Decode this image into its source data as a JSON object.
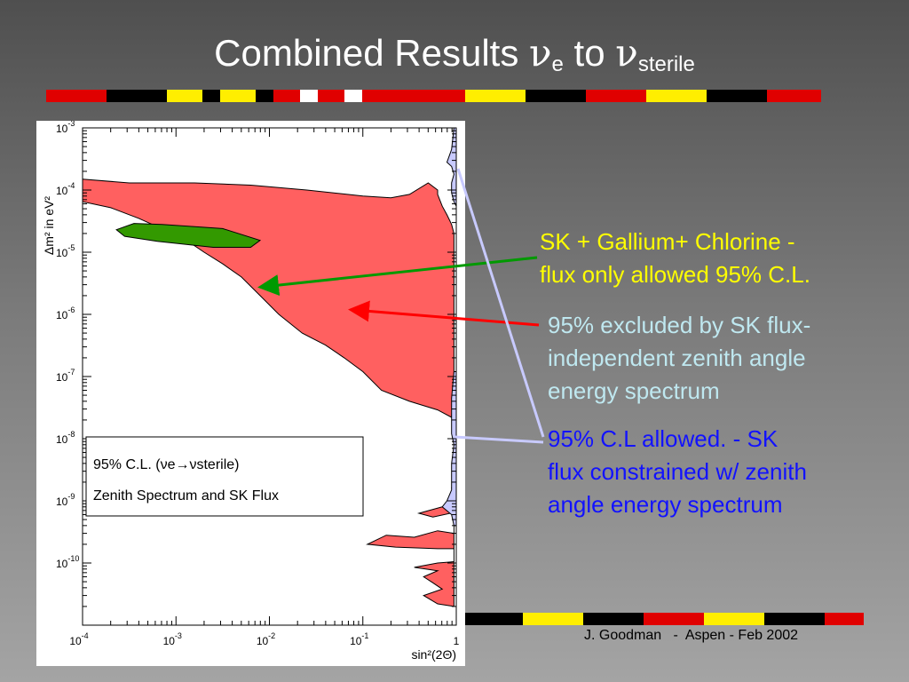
{
  "slide": {
    "title_main": "Combined Results ",
    "title_nu1": "ν",
    "title_sub1": "e",
    "title_mid": " to ",
    "title_nu2": "ν",
    "title_sub2": "sterile"
  },
  "annotations": {
    "green": {
      "lines": [
        "SK + Gallium+ Chlorine -",
        "flux only allowed 95% C.L."
      ],
      "color": "#ffff00"
    },
    "red": {
      "lines": [
        "95% excluded by SK flux-",
        "independent zenith angle",
        "energy spectrum"
      ],
      "color": "#bfe8f0"
    },
    "blue": {
      "lines": [
        "95% C.L allowed.  - SK",
        "flux constrained w/ zenith",
        "angle energy spectrum"
      ],
      "color": "#1212ff"
    }
  },
  "footer": "J. Goodman   -  Aspen - Feb 2002",
  "chart_data": {
    "type": "area",
    "xlabel": "sin²(2Θ)",
    "ylabel": "Δm² in eV²",
    "x_log": true,
    "y_log": true,
    "xlim": [
      0.0001,
      1
    ],
    "ylim": [
      1e-11,
      0.001
    ],
    "x_ticks": [
      {
        "base": "10",
        "exp": "-4"
      },
      {
        "base": "10",
        "exp": "-3"
      },
      {
        "base": "10",
        "exp": "-2"
      },
      {
        "base": "10",
        "exp": "-1"
      },
      {
        "base": "",
        "exp": "1"
      }
    ],
    "y_ticks": [
      {
        "base": "10",
        "exp": "-3"
      },
      {
        "base": "10",
        "exp": "-4"
      },
      {
        "base": "10",
        "exp": "-5"
      },
      {
        "base": "10",
        "exp": "-6"
      },
      {
        "base": "10",
        "exp": "-7"
      },
      {
        "base": "10",
        "exp": "-8"
      },
      {
        "base": "10",
        "exp": "-9"
      },
      {
        "base": "10",
        "exp": "-10"
      }
    ],
    "legend": {
      "line1": "95% C.L. (νe→νsterile)",
      "line2": "Zenith Spectrum and SK Flux",
      "position": "middle-left"
    },
    "regions": [
      {
        "name": "SK flux-independent excluded",
        "color": "#ff6060",
        "boundary": [
          [
            0.0001,
            0.00015
          ],
          [
            0.000316,
            0.00013
          ],
          [
            0.00158,
            0.00013
          ],
          [
            0.00631,
            0.00012
          ],
          [
            0.0251,
            0.0001
          ],
          [
            0.1,
            8e-05
          ],
          [
            0.2,
            7.5e-05
          ],
          [
            0.316,
            8.5e-05
          ],
          [
            0.501,
            0.00013
          ],
          [
            0.631,
            0.0001
          ],
          [
            0.631,
            8.5e-05
          ],
          [
            0.708,
            5.5e-05
          ],
          [
            0.794,
            4e-05
          ],
          [
            0.891,
            2.8e-05
          ],
          [
            0.944,
            2e-05
          ],
          [
            0.944,
            1e-06
          ],
          [
            0.944,
            1e-07
          ],
          [
            0.891,
            2.2e-08
          ],
          [
            0.631,
            2.9e-08
          ],
          [
            0.316,
            4e-08
          ],
          [
            0.158,
            6e-08
          ],
          [
            0.1,
            1.2e-07
          ],
          [
            0.0631,
            2e-07
          ],
          [
            0.0398,
            3.2e-07
          ],
          [
            0.0224,
            5e-07
          ],
          [
            0.0126,
            1e-06
          ],
          [
            0.00794,
            2e-06
          ],
          [
            0.00501,
            4e-06
          ],
          [
            0.00316,
            6.5e-06
          ],
          [
            0.002,
            1e-05
          ],
          [
            0.00126,
            1.6e-05
          ],
          [
            0.000794,
            2.2e-05
          ],
          [
            0.0004,
            3.5e-05
          ],
          [
            0.0002,
            5.2e-05
          ],
          [
            0.0001,
            6.5e-05
          ]
        ]
      },
      {
        "name": "SK excluded low-Δm² lobes",
        "color": "#ff6060",
        "boundary": [
          [
            0.944,
            1.7e-10
          ],
          [
            0.631,
            1.7e-10
          ],
          [
            0.224,
            1.8e-10
          ],
          [
            0.112,
            2e-10
          ],
          [
            0.178,
            2.8e-10
          ],
          [
            0.355,
            2.6e-10
          ],
          [
            0.631,
            3.3e-10
          ],
          [
            0.944,
            3e-10
          ],
          [
            0.944,
            6.5e-10
          ],
          [
            0.562,
            5.5e-10
          ],
          [
            0.398,
            6.3e-10
          ],
          [
            0.708,
            8e-10
          ],
          [
            0.944,
            8.2e-10
          ],
          [
            0.944,
            1.45e-09
          ],
          [
            0.891,
            1.6e-09
          ],
          [
            0.944,
            1.85e-09
          ],
          [
            0.944,
            2e-11
          ],
          [
            0.631,
            2.2e-11
          ],
          [
            0.447,
            3e-11
          ],
          [
            0.708,
            3.8e-11
          ],
          [
            0.562,
            4.8e-11
          ],
          [
            0.447,
            6e-11
          ],
          [
            0.631,
            7.5e-11
          ],
          [
            0.355,
            8.5e-11
          ],
          [
            0.631,
            1e-10
          ],
          [
            0.944,
            1.05e-10
          ]
        ]
      },
      {
        "name": "SK + Gallium + Chlorine flux-only allowed",
        "color": "#339900",
        "boundary": [
          [
            0.00023,
            2.3e-05
          ],
          [
            0.000355,
            2.9e-05
          ],
          [
            0.000708,
            2.8e-05
          ],
          [
            0.00316,
            2.4e-05
          ],
          [
            0.00794,
            1.55e-05
          ],
          [
            0.0063,
            1.2e-05
          ],
          [
            0.0025,
            1.2e-05
          ],
          [
            0.000631,
            1.5e-05
          ],
          [
            0.000282,
            1.8e-05
          ]
        ]
      },
      {
        "name": "SK flux constrained allowed (zenith spectrum)",
        "color": "#c8caff",
        "boundary": [
          [
            0.944,
            0.001
          ],
          [
            0.891,
            0.00045
          ],
          [
            0.794,
            0.00028
          ],
          [
            0.891,
            0.00024
          ],
          [
            0.944,
            0.00018
          ],
          [
            0.891,
            0.00013
          ],
          [
            0.891,
            9e-05
          ],
          [
            0.944,
            6.5e-05
          ],
          [
            1,
            5.5e-05
          ],
          [
            1,
            0.001
          ]
        ]
      },
      {
        "name": "SK flux constrained allowed low",
        "color": "#c8caff",
        "boundary": [
          [
            0.944,
            1.2e-07
          ],
          [
            0.891,
            4.5e-08
          ],
          [
            0.891,
            1.2e-08
          ],
          [
            0.944,
            8e-09
          ],
          [
            0.891,
            4e-09
          ],
          [
            0.891,
            1.5e-09
          ],
          [
            0.794,
            1e-09
          ],
          [
            0.708,
            8e-10
          ],
          [
            0.891,
            6e-10
          ],
          [
            0.944,
            4e-10
          ],
          [
            1,
            4e-10
          ],
          [
            1,
            1.2e-07
          ]
        ]
      }
    ]
  }
}
